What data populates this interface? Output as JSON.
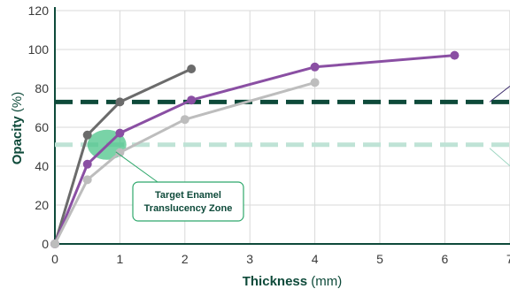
{
  "chart_data": {
    "type": "line",
    "xlabel": {
      "bold": "Thickness",
      "unit": " (mm)"
    },
    "ylabel": {
      "bold": "Opacity",
      "unit": " (%)"
    },
    "xlim": [
      0,
      7
    ],
    "ylim": [
      0,
      120
    ],
    "x_ticks": [
      "0",
      "1",
      "2",
      "3",
      "4",
      "5",
      "6",
      "7"
    ],
    "y_ticks": [
      "0",
      "20",
      "40",
      "60",
      "80",
      "100",
      "120"
    ],
    "grid": true,
    "series": [
      {
        "color": "#6b6b6b",
        "points": [
          [
            0,
            0
          ],
          [
            0.5,
            56
          ],
          [
            1,
            73
          ],
          [
            2.1,
            90
          ]
        ]
      },
      {
        "color": "#8a4fa3",
        "points": [
          [
            0,
            0
          ],
          [
            0.5,
            41
          ],
          [
            1,
            57
          ],
          [
            2.1,
            74
          ],
          [
            4,
            91
          ],
          [
            6.15,
            97
          ]
        ]
      },
      {
        "color": "#bdbdbd",
        "points": [
          [
            0,
            0
          ],
          [
            0.5,
            33
          ],
          [
            1,
            47
          ],
          [
            2,
            64
          ],
          [
            4,
            83
          ]
        ]
      }
    ],
    "reference_lines": [
      {
        "y": 73,
        "color": "#0e4a3a"
      },
      {
        "y": 51,
        "color": "#bfe3d6"
      }
    ],
    "annotation": {
      "lines": [
        "Target Enamel",
        "Translucency Zone"
      ],
      "center_x": 0.8,
      "center_y": 51,
      "fill": "#4cc48a",
      "border": "#2fa86c"
    }
  }
}
